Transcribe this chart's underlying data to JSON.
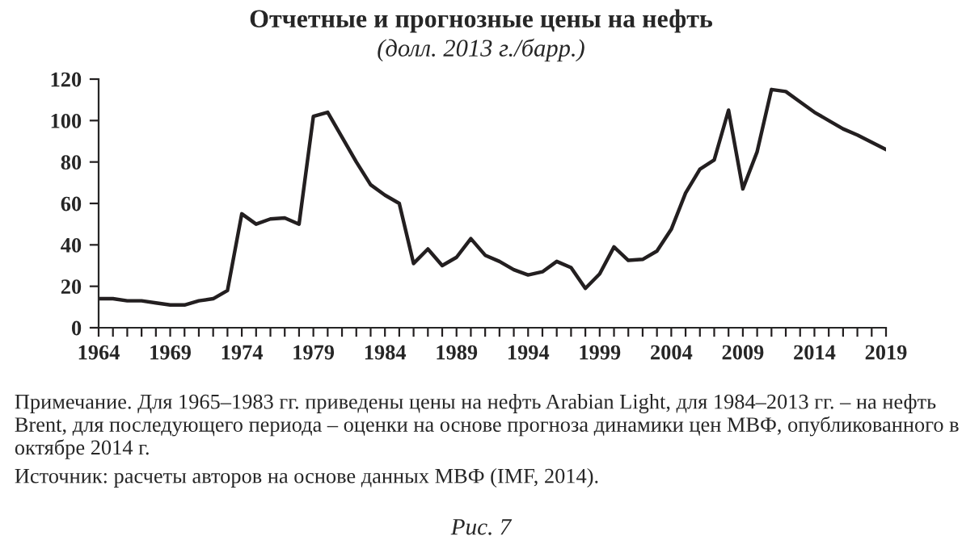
{
  "chart_data": {
    "type": "line",
    "title": "Отчетные и прогнозные цены на нефть",
    "subtitle": "(долл. 2013 г./барр.)",
    "x": [
      1964,
      1965,
      1966,
      1967,
      1968,
      1969,
      1970,
      1971,
      1972,
      1973,
      1974,
      1975,
      1976,
      1977,
      1978,
      1979,
      1980,
      1981,
      1982,
      1983,
      1984,
      1985,
      1986,
      1987,
      1988,
      1989,
      1990,
      1991,
      1992,
      1993,
      1994,
      1995,
      1996,
      1997,
      1998,
      1999,
      2000,
      2001,
      2002,
      2003,
      2004,
      2005,
      2006,
      2007,
      2008,
      2009,
      2010,
      2011,
      2012,
      2013,
      2014,
      2015,
      2016,
      2017,
      2018,
      2019
    ],
    "series": [
      {
        "color": "#231f20",
        "values": [
          14,
          14,
          13,
          13,
          12,
          11,
          11,
          13,
          14,
          18,
          55,
          50,
          52.5,
          53,
          50,
          102,
          104,
          92,
          80,
          69,
          64,
          60,
          31,
          38,
          30,
          34,
          43,
          35,
          32,
          28,
          25.5,
          27,
          32,
          29,
          19,
          26,
          39,
          32.5,
          33,
          37,
          47.5,
          65,
          76.5,
          81,
          105,
          67,
          85,
          115,
          114,
          109,
          104,
          100,
          96,
          93,
          89.5,
          86
        ]
      }
    ],
    "xlim": [
      1964,
      2019
    ],
    "ylim": [
      0,
      120
    ],
    "yticks": [
      0,
      20,
      40,
      60,
      80,
      100,
      120
    ],
    "xticks": [
      1964,
      {
        "value": 1965,
        "label": null
      },
      {
        "value": 1966,
        "label": null
      },
      {
        "value": 1967,
        "label": null
      },
      {
        "value": 1968,
        "label": null
      },
      1969,
      {
        "value": 1970,
        "label": null
      },
      {
        "value": 1971,
        "label": null
      },
      {
        "value": 1972,
        "label": null
      },
      {
        "value": 1973,
        "label": null
      },
      1974,
      {
        "value": 1975,
        "label": null
      },
      {
        "value": 1976,
        "label": null
      },
      {
        "value": 1977,
        "label": null
      },
      {
        "value": 1978,
        "label": null
      },
      1979,
      {
        "value": 1980,
        "label": null
      },
      {
        "value": 1981,
        "label": null
      },
      {
        "value": 1982,
        "label": null
      },
      {
        "value": 1983,
        "label": null
      },
      1984,
      {
        "value": 1985,
        "label": null
      },
      {
        "value": 1986,
        "label": null
      },
      {
        "value": 1987,
        "label": null
      },
      {
        "value": 1988,
        "label": null
      },
      1989,
      {
        "value": 1990,
        "label": null
      },
      {
        "value": 1991,
        "label": null
      },
      {
        "value": 1992,
        "label": null
      },
      {
        "value": 1993,
        "label": null
      },
      1994,
      {
        "value": 1995,
        "label": null
      },
      {
        "value": 1996,
        "label": null
      },
      {
        "value": 1997,
        "label": null
      },
      {
        "value": 1998,
        "label": null
      },
      1999,
      {
        "value": 2000,
        "label": null
      },
      {
        "value": 2001,
        "label": null
      },
      {
        "value": 2002,
        "label": null
      },
      {
        "value": 2003,
        "label": null
      },
      2004,
      {
        "value": 2005,
        "label": null
      },
      {
        "value": 2006,
        "label": null
      },
      {
        "value": 2007,
        "label": null
      },
      {
        "value": 2008,
        "label": null
      },
      2009,
      {
        "value": 2010,
        "label": null
      },
      {
        "value": 2011,
        "label": null
      },
      {
        "value": 2012,
        "label": null
      },
      {
        "value": 2013,
        "label": null
      },
      2014,
      {
        "value": 2015,
        "label": null
      },
      {
        "value": 2016,
        "label": null
      },
      {
        "value": 2017,
        "label": null
      },
      {
        "value": 2018,
        "label": null
      },
      2019
    ],
    "grid": false,
    "marker": "none",
    "line_style": "solid",
    "annotations": [
      "Примечание. Для 1965–1983 гг. приведены цены на нефть Arabian Light, для 1984–2013 гг. – на нефть Brent, для последующего периода – оценки на основе прогноза динамики цен МВФ, опубликованного в октябре 2014 г.",
      "Источник: расчеты авторов на основе данных МВФ (IMF, 2014).",
      "Рис. 7"
    ]
  }
}
